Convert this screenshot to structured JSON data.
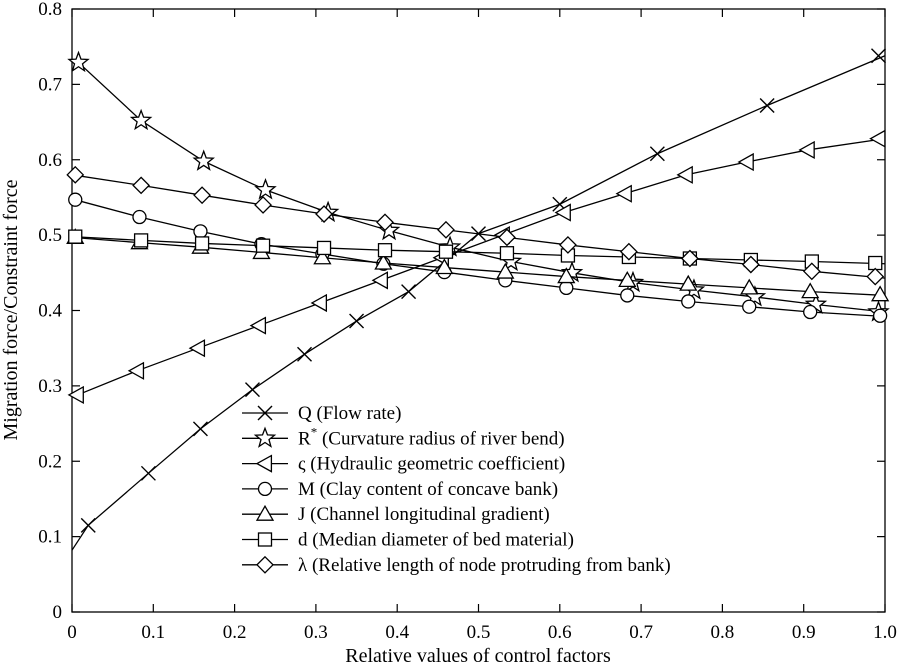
{
  "chart_data": {
    "type": "line",
    "xlabel": "Relative values of control factors",
    "ylabel": "Migration force/Constraint force",
    "xlim": [
      0,
      1.0
    ],
    "ylim": [
      0,
      0.8
    ],
    "x_ticks": [
      "0",
      "0.1",
      "0.2",
      "0.3",
      "0.4",
      "0.5",
      "0.6",
      "0.7",
      "0.8",
      "0.9",
      "1.0"
    ],
    "y_ticks": [
      "0",
      "0.1",
      "0.2",
      "0.3",
      "0.4",
      "0.5",
      "0.6",
      "0.7",
      "0.8"
    ],
    "x_tick_values": [
      0,
      0.1,
      0.2,
      0.3,
      0.4,
      0.5,
      0.6,
      0.7,
      0.8,
      0.9,
      1.0
    ],
    "y_tick_values": [
      0,
      0.1,
      0.2,
      0.3,
      0.4,
      0.5,
      0.6,
      0.7,
      0.8
    ],
    "grid": false,
    "legend_position": "bottom-center",
    "series": [
      {
        "name": "Q (Flow rate)",
        "legend_symbol": "Q",
        "legend_desc": "(Flow rate)",
        "marker": "x",
        "x": [
          0,
          0.02,
          0.094,
          0.158,
          0.222,
          0.286,
          0.35,
          0.414,
          0.5,
          0.6,
          0.72,
          0.855,
          1.0
        ],
        "y": [
          0.082,
          0.115,
          0.184,
          0.243,
          0.295,
          0.342,
          0.386,
          0.425,
          0.502,
          0.541,
          0.608,
          0.672,
          0.738
        ],
        "marker_x": [
          0.02,
          0.094,
          0.158,
          0.222,
          0.286,
          0.35,
          0.414,
          0.5,
          0.6,
          0.72,
          0.855,
          0.992
        ],
        "marker_y": [
          0.115,
          0.184,
          0.243,
          0.295,
          0.342,
          0.386,
          0.425,
          0.502,
          0.541,
          0.608,
          0.672,
          0.738
        ]
      },
      {
        "name": "R* (Curvature radius of river bend)",
        "legend_symbol": "R",
        "legend_sup": "*",
        "legend_desc": "(Curvature radius of river bend)",
        "marker": "star",
        "x": [
          0,
          0.008,
          0.085,
          0.162,
          0.238,
          0.315,
          0.39,
          0.465,
          0.54,
          0.615,
          0.69,
          0.765,
          0.84,
          0.915,
          1.0
        ],
        "y": [
          0.732,
          0.729,
          0.652,
          0.598,
          0.56,
          0.53,
          0.506,
          0.484,
          0.465,
          0.45,
          0.437,
          0.427,
          0.418,
          0.408,
          0.398
        ],
        "marker_x": [
          0.008,
          0.085,
          0.162,
          0.238,
          0.315,
          0.39,
          0.465,
          0.54,
          0.615,
          0.69,
          0.765,
          0.84,
          0.915,
          0.992
        ],
        "marker_y": [
          0.729,
          0.652,
          0.598,
          0.56,
          0.53,
          0.506,
          0.484,
          0.465,
          0.45,
          0.437,
          0.427,
          0.418,
          0.408,
          0.398
        ]
      },
      {
        "name": "ς (Hydraulic geometric coefficient)",
        "legend_symbol": "ς",
        "legend_desc": "(Hydraulic geometric coefficient)",
        "marker": "triangle-left",
        "x": [
          0,
          0.08,
          0.155,
          0.23,
          0.305,
          0.38,
          0.455,
          0.53,
          0.605,
          0.68,
          0.755,
          0.83,
          0.905,
          1.0
        ],
        "y": [
          0.285,
          0.32,
          0.35,
          0.38,
          0.41,
          0.44,
          0.47,
          0.5,
          0.53,
          0.555,
          0.58,
          0.597,
          0.613,
          0.628
        ],
        "marker_x": [
          0.006,
          0.08,
          0.155,
          0.23,
          0.305,
          0.38,
          0.455,
          0.53,
          0.605,
          0.68,
          0.755,
          0.83,
          0.905,
          0.992
        ],
        "marker_y": [
          0.288,
          0.32,
          0.35,
          0.38,
          0.41,
          0.44,
          0.47,
          0.5,
          0.53,
          0.555,
          0.58,
          0.597,
          0.613,
          0.628
        ]
      },
      {
        "name": "M (Clay content of concave bank)",
        "legend_symbol": "M",
        "legend_desc": "(Clay content of concave bank)",
        "marker": "circle",
        "x": [
          0,
          0.083,
          0.158,
          0.233,
          0.308,
          0.383,
          0.458,
          0.533,
          0.608,
          0.683,
          0.758,
          0.833,
          0.908,
          1.0
        ],
        "y": [
          0.548,
          0.524,
          0.505,
          0.488,
          0.475,
          0.462,
          0.451,
          0.44,
          0.43,
          0.42,
          0.412,
          0.405,
          0.398,
          0.392
        ],
        "marker_x": [
          0.004,
          0.083,
          0.158,
          0.233,
          0.308,
          0.383,
          0.458,
          0.533,
          0.608,
          0.683,
          0.758,
          0.833,
          0.908,
          0.994
        ],
        "marker_y": [
          0.547,
          0.524,
          0.505,
          0.488,
          0.475,
          0.462,
          0.451,
          0.44,
          0.43,
          0.42,
          0.412,
          0.405,
          0.398,
          0.393
        ]
      },
      {
        "name": "J (Channel longitudinal gradient)",
        "legend_symbol": "J",
        "legend_desc": "(Channel longitudinal gradient)",
        "marker": "triangle-up",
        "x": [
          0,
          0.083,
          0.158,
          0.233,
          0.308,
          0.383,
          0.458,
          0.533,
          0.608,
          0.683,
          0.758,
          0.833,
          0.908,
          1.0
        ],
        "y": [
          0.497,
          0.49,
          0.484,
          0.477,
          0.47,
          0.463,
          0.457,
          0.451,
          0.445,
          0.44,
          0.435,
          0.43,
          0.425,
          0.42
        ],
        "marker_x": [
          0.004,
          0.083,
          0.158,
          0.233,
          0.308,
          0.383,
          0.458,
          0.533,
          0.608,
          0.683,
          0.758,
          0.833,
          0.908,
          0.994
        ],
        "marker_y": [
          0.497,
          0.49,
          0.484,
          0.477,
          0.47,
          0.463,
          0.457,
          0.451,
          0.445,
          0.44,
          0.435,
          0.43,
          0.425,
          0.421
        ]
      },
      {
        "name": "d (Median diameter of bed material)",
        "legend_symbol": "d",
        "legend_desc": "(Median diameter of bed material)",
        "marker": "square",
        "x": [
          0,
          0.085,
          0.16,
          0.235,
          0.31,
          0.385,
          0.46,
          0.535,
          0.61,
          0.685,
          0.76,
          0.835,
          0.91,
          1.0
        ],
        "y": [
          0.498,
          0.493,
          0.489,
          0.486,
          0.483,
          0.48,
          0.478,
          0.476,
          0.473,
          0.471,
          0.469,
          0.467,
          0.465,
          0.462
        ],
        "marker_x": [
          0.004,
          0.085,
          0.16,
          0.235,
          0.31,
          0.385,
          0.46,
          0.535,
          0.61,
          0.685,
          0.76,
          0.835,
          0.91,
          0.988
        ],
        "marker_y": [
          0.498,
          0.493,
          0.489,
          0.486,
          0.483,
          0.48,
          0.478,
          0.476,
          0.473,
          0.471,
          0.469,
          0.467,
          0.465,
          0.463
        ]
      },
      {
        "name": "λ (Relative length of node protruding from bank)",
        "legend_symbol": "λ",
        "legend_desc": "(Relative length of node protruding from bank)",
        "marker": "diamond",
        "x": [
          0,
          0.085,
          0.16,
          0.235,
          0.31,
          0.385,
          0.46,
          0.535,
          0.61,
          0.685,
          0.76,
          0.835,
          0.91,
          1.0
        ],
        "y": [
          0.58,
          0.566,
          0.553,
          0.54,
          0.528,
          0.517,
          0.507,
          0.497,
          0.487,
          0.478,
          0.469,
          0.461,
          0.452,
          0.443
        ],
        "marker_x": [
          0.004,
          0.085,
          0.16,
          0.235,
          0.31,
          0.385,
          0.46,
          0.535,
          0.61,
          0.685,
          0.76,
          0.835,
          0.91,
          0.988
        ],
        "marker_y": [
          0.58,
          0.566,
          0.553,
          0.54,
          0.528,
          0.517,
          0.507,
          0.497,
          0.487,
          0.478,
          0.469,
          0.461,
          0.452,
          0.445
        ]
      }
    ]
  }
}
